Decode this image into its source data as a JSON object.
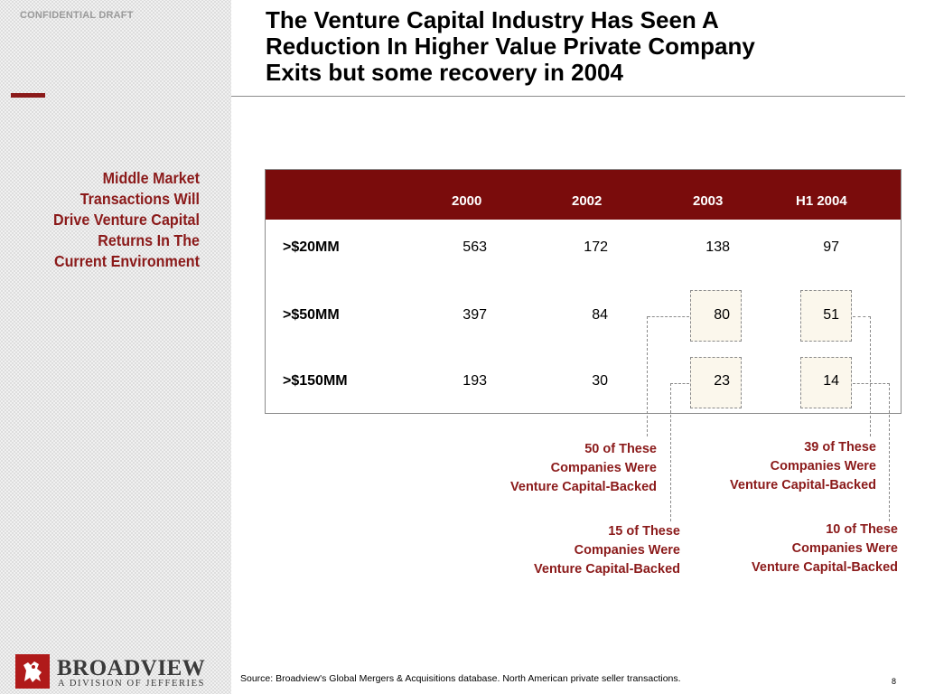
{
  "header": {
    "confidential": "CONFIDENTIAL DRAFT",
    "title_lines": [
      "The Venture Capital Industry Has Seen A",
      "Reduction In Higher Value Private Company",
      "Exits but some recovery in 2004"
    ]
  },
  "sidebar": {
    "heading_lines": [
      "Middle Market",
      "Transactions Will",
      "Drive Venture Capital",
      "Returns In The",
      "Current Environment"
    ]
  },
  "table": {
    "columns": [
      "2000",
      "2002",
      "2003",
      "H1 2004"
    ],
    "rows": [
      {
        "label": ">$20MM",
        "values": [
          "563",
          "172",
          "138",
          "97"
        ]
      },
      {
        "label": ">$50MM",
        "values": [
          "397",
          "84",
          "80",
          "51"
        ]
      },
      {
        "label": ">$150MM",
        "values": [
          "193",
          "30",
          "23",
          "14"
        ]
      }
    ]
  },
  "notes": {
    "n2003_50": [
      "50 of These",
      "Companies Were",
      "Venture Capital-Backed"
    ],
    "n2004_50": [
      "39 of These",
      "Companies Were",
      "Venture Capital-Backed"
    ],
    "n2003_150": [
      "15 of These",
      "Companies Were",
      "Venture Capital-Backed"
    ],
    "n2004_150": [
      "10 of These",
      "Companies Were",
      "Venture Capital-Backed"
    ]
  },
  "footer": {
    "logo_name": "BROADVIEW",
    "logo_tagline": "A DIVISION OF JEFFERIES",
    "source": "Source:  Broadview's Global Mergers & Acquisitions database. North American private seller transactions.",
    "page_number": "8"
  },
  "colors": {
    "accent": "#8b1a1a",
    "table_header": "#7a0c0c"
  }
}
